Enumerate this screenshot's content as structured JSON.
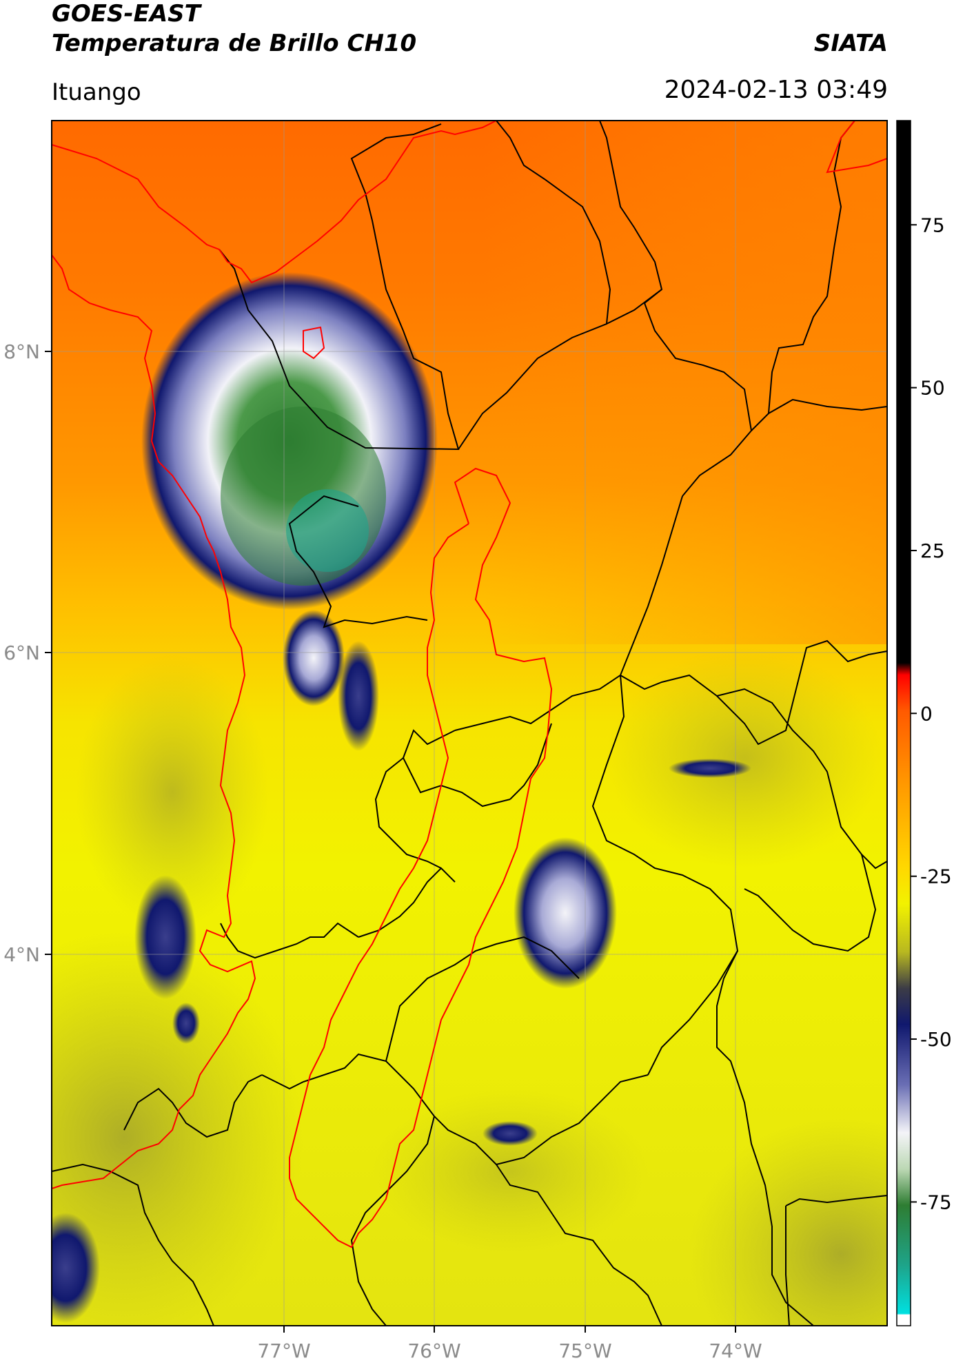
{
  "header": {
    "line1": "GOES-EAST",
    "line2": "Temperatura de Brillo CH10",
    "organization": "SIATA",
    "region": "Ituango",
    "datetime": "2024-02-13 03:49"
  },
  "map": {
    "lon_range": [
      -78.55,
      -73.0
    ],
    "lat_range": [
      1.55,
      9.55
    ],
    "lon_ticks": [
      "77°W",
      "76°W",
      "75°W",
      "74°W"
    ],
    "lat_ticks": [
      "8°N",
      "6°N",
      "4°N"
    ],
    "gridlines": true,
    "colors": {
      "warm_orange": "#ff6e00",
      "orange": "#ff9a00",
      "yellow": "#f2f200",
      "olive": "#b8b820",
      "navy": "#10186e",
      "white": "#f2f2f8",
      "green": "#2e7d32",
      "teal": "#1ea48a",
      "border_black": "#000000",
      "border_red": "#ff0000"
    }
  },
  "colorbar": {
    "ticks": [
      "75",
      "50",
      "25",
      "0",
      "-25",
      "-50",
      "-75"
    ],
    "tick_values": [
      75,
      50,
      25,
      0,
      -25,
      -50,
      -75
    ],
    "vmin": -94,
    "vmax": 91
  }
}
